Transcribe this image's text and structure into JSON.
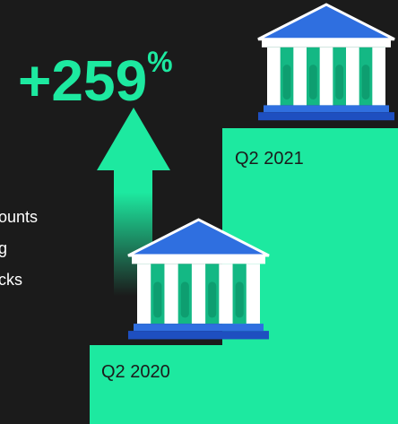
{
  "headline": {
    "value": "+259",
    "unit": "%"
  },
  "side_text": [
    "ounts",
    "g",
    "cks"
  ],
  "steps": [
    {
      "label": "Q2 2020"
    },
    {
      "label": "Q2 2021"
    }
  ]
}
